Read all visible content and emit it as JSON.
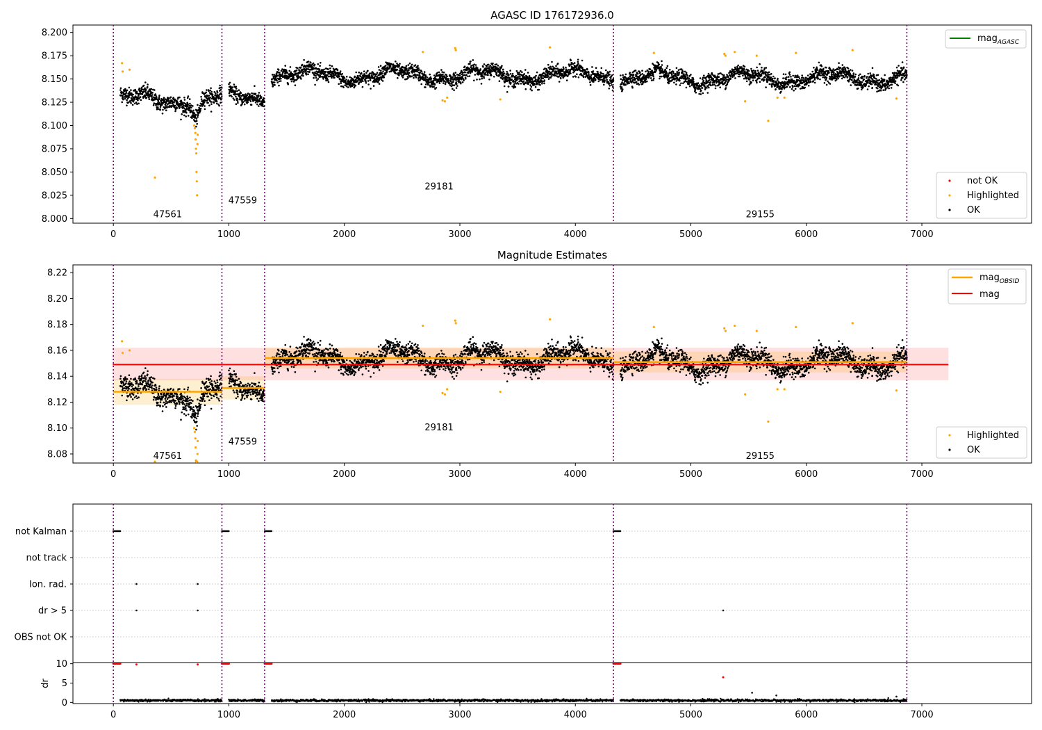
{
  "figure": {
    "panels": {
      "top": {
        "title": "AGASC ID 176172936.0",
        "legend_line": {
          "label_main": "mag",
          "label_sub": "AGASC",
          "color": "#008000"
        },
        "legend_points": [
          {
            "label": "not OK",
            "color": "#ff0000"
          },
          {
            "label": "Highlighted",
            "color": "#ffa500"
          },
          {
            "label": "OK",
            "color": "#000000"
          }
        ]
      },
      "middle": {
        "title": "Magnitude Estimates",
        "legend_lines": [
          {
            "label_main": "mag",
            "label_sub": "OBSID",
            "color": "#ffa500"
          },
          {
            "label_main": "mag",
            "label_sub": "",
            "color": "#ff0000"
          }
        ],
        "legend_points": [
          {
            "label": "Highlighted",
            "color": "#ffa500"
          },
          {
            "label": "OK",
            "color": "#000000"
          }
        ]
      },
      "flags": {
        "row_labels": [
          "not Kalman",
          "not track",
          "Ion. rad.",
          "dr > 5",
          "OBS not OK"
        ]
      },
      "dr": {
        "ylabel": "dr"
      }
    }
  },
  "chart_data": [
    {
      "type": "scatter",
      "title": "AGASC ID 176172936.0",
      "xlabel": "",
      "ylabel": "",
      "xlim": [
        -350,
        7950
      ],
      "ylim": [
        7.995,
        8.208
      ],
      "x_ticks": [
        0,
        1000,
        2000,
        3000,
        4000,
        5000,
        6000,
        7000
      ],
      "y_ticks": [
        8.0,
        8.025,
        8.05,
        8.075,
        8.1,
        8.125,
        8.15,
        8.175,
        8.2
      ],
      "y_tick_labels": [
        "8.000",
        "8.025",
        "8.050",
        "8.075",
        "8.100",
        "8.125",
        "8.150",
        "8.175",
        "8.200"
      ],
      "legend_position": "top-right / bottom-right",
      "observation_boundaries": [
        0,
        940,
        1310,
        4330,
        6870
      ],
      "obsid_labels": [
        {
          "text": "47561",
          "x": 470,
          "y": 8.005
        },
        {
          "text": "47559",
          "x": 1120,
          "y": 8.02
        },
        {
          "text": "29181",
          "x": 2820,
          "y": 8.035
        },
        {
          "text": "29155",
          "x": 5600,
          "y": 8.005
        }
      ],
      "segments": [
        {
          "x_start": 60,
          "x_end": 940,
          "mean": 8.128,
          "noise": 0.008
        },
        {
          "x_start": 1000,
          "x_end": 1310,
          "mean": 8.131,
          "noise": 0.007
        },
        {
          "x_start": 1370,
          "x_end": 4330,
          "mean": 8.154,
          "noise": 0.007
        },
        {
          "x_start": 4390,
          "x_end": 6870,
          "mean": 8.151,
          "noise": 0.007
        }
      ],
      "dip": {
        "x_center": 720,
        "width": 30,
        "depth": 0.02
      },
      "highlighted": [
        {
          "x": 75,
          "y": 8.167
        },
        {
          "x": 80,
          "y": 8.158
        },
        {
          "x": 140,
          "y": 8.16
        },
        {
          "x": 360,
          "y": 8.044
        },
        {
          "x": 700,
          "y": 8.1
        },
        {
          "x": 705,
          "y": 8.097
        },
        {
          "x": 710,
          "y": 8.092
        },
        {
          "x": 712,
          "y": 8.085
        },
        {
          "x": 715,
          "y": 8.075
        },
        {
          "x": 718,
          "y": 8.07
        },
        {
          "x": 720,
          "y": 8.05
        },
        {
          "x": 722,
          "y": 8.04
        },
        {
          "x": 725,
          "y": 8.025
        },
        {
          "x": 728,
          "y": 8.08
        },
        {
          "x": 730,
          "y": 8.09
        },
        {
          "x": 2680,
          "y": 8.179
        },
        {
          "x": 2850,
          "y": 8.127
        },
        {
          "x": 2870,
          "y": 8.126
        },
        {
          "x": 2890,
          "y": 8.13
        },
        {
          "x": 2960,
          "y": 8.183
        },
        {
          "x": 2965,
          "y": 8.181
        },
        {
          "x": 3350,
          "y": 8.128
        },
        {
          "x": 3780,
          "y": 8.184
        },
        {
          "x": 4680,
          "y": 8.178
        },
        {
          "x": 5290,
          "y": 8.177
        },
        {
          "x": 5300,
          "y": 8.175
        },
        {
          "x": 5380,
          "y": 8.179
        },
        {
          "x": 5470,
          "y": 8.126
        },
        {
          "x": 5570,
          "y": 8.175
        },
        {
          "x": 5670,
          "y": 8.105
        },
        {
          "x": 5750,
          "y": 8.13
        },
        {
          "x": 5810,
          "y": 8.13
        },
        {
          "x": 5910,
          "y": 8.178
        },
        {
          "x": 6400,
          "y": 8.181
        },
        {
          "x": 6780,
          "y": 8.129
        }
      ]
    },
    {
      "type": "scatter",
      "title": "Magnitude Estimates",
      "xlabel": "",
      "ylabel": "",
      "xlim": [
        -350,
        7950
      ],
      "ylim": [
        8.073,
        8.226
      ],
      "x_ticks": [
        0,
        1000,
        2000,
        3000,
        4000,
        5000,
        6000,
        7000
      ],
      "y_ticks": [
        8.08,
        8.1,
        8.12,
        8.14,
        8.16,
        8.18,
        8.2,
        8.22
      ],
      "y_tick_labels": [
        "8.08",
        "8.10",
        "8.12",
        "8.14",
        "8.16",
        "8.18",
        "8.20",
        "8.22"
      ],
      "legend_position": "top-right / bottom-right",
      "observation_boundaries": [
        0,
        940,
        1310,
        4330,
        6870
      ],
      "mag": 8.149,
      "mag_band": [
        8.137,
        8.162
      ],
      "mag_x_range": [
        -5,
        7230
      ],
      "mag_obsid_segments": [
        {
          "x_start": 0,
          "x_end": 940,
          "value": 8.128,
          "band": [
            8.118,
            8.138
          ]
        },
        {
          "x_start": 940,
          "x_end": 1310,
          "value": 8.131,
          "band": [
            8.122,
            8.14
          ]
        },
        {
          "x_start": 1310,
          "x_end": 4330,
          "value": 8.154,
          "band": [
            8.146,
            8.162
          ]
        },
        {
          "x_start": 4330,
          "x_end": 6870,
          "value": 8.151,
          "band": [
            8.143,
            8.159
          ]
        }
      ],
      "obsid_labels": [
        {
          "text": "47561",
          "x": 470,
          "y": 8.079
        },
        {
          "text": "47559",
          "x": 1120,
          "y": 8.09
        },
        {
          "text": "29181",
          "x": 2820,
          "y": 8.101
        },
        {
          "text": "29155",
          "x": 5600,
          "y": 8.079
        }
      ]
    },
    {
      "type": "scatter",
      "title": "",
      "xlabel": "",
      "ylabel": "",
      "xlim": [
        -350,
        7950
      ],
      "categories": [
        "not Kalman",
        "not track",
        "Ion. rad.",
        "dr > 5",
        "OBS not OK"
      ],
      "points": {
        "not Kalman": [
          [
            0,
            60
          ],
          [
            940,
            1000
          ],
          [
            1310,
            1370
          ],
          [
            4330,
            4390
          ]
        ],
        "not track": [],
        "Ion. rad.": [
          200,
          730
        ],
        "dr > 5": [
          200,
          730,
          5280
        ],
        "OBS not OK": []
      },
      "grid": true
    },
    {
      "type": "scatter",
      "title": "",
      "xlabel": "",
      "ylabel": "dr",
      "xlim": [
        -350,
        7950
      ],
      "ylim": [
        -0.3,
        10.3
      ],
      "y_ticks": [
        0,
        5,
        10
      ],
      "y_tick_labels": [
        "0",
        "5",
        "10"
      ],
      "not_ok_points": [
        {
          "x_start": 0,
          "x_end": 60,
          "y": 10
        },
        {
          "x_start": 940,
          "x_end": 1000,
          "y": 10
        },
        {
          "x_start": 1310,
          "x_end": 1370,
          "y": 10
        },
        {
          "x_start": 4330,
          "x_end": 4390,
          "y": 10
        },
        {
          "x": 200,
          "y": 9.8
        },
        {
          "x": 730,
          "y": 9.8
        },
        {
          "x": 5280,
          "y": 6.5
        }
      ],
      "outliers": [
        {
          "x": 5530,
          "y": 2.5
        },
        {
          "x": 5740,
          "y": 1.8
        },
        {
          "x": 6780,
          "y": 1.5
        }
      ],
      "baseline": 0.5
    }
  ]
}
